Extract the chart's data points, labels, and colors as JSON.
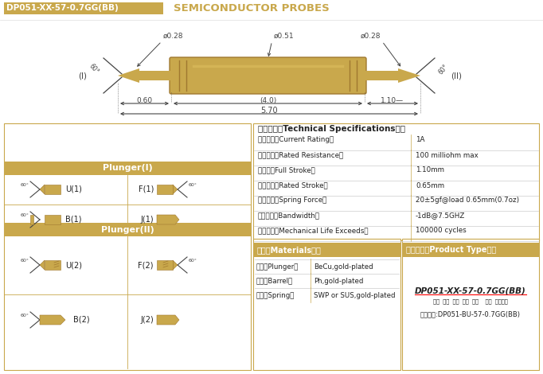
{
  "title_box_text": "DP051-XX-57-0.7GG(BB)",
  "title_subtitle": "SEMICONDUCTOR PROBES",
  "gold_color": "#C9A84C",
  "gold_dark": "#A07830",
  "gold_light": "#E0C060",
  "white": "#FFFFFF",
  "text_dark": "#222222",
  "dim_color": "#444444",
  "border_color": "#C9A84C",
  "specs": [
    [
      "额定电流（Current Rating）",
      "1A"
    ],
    [
      "额定电阰（Rated Resistance）",
      "100 milliohm max"
    ],
    [
      "满行程（Full Stroke）",
      "1.10mm"
    ],
    [
      "额定行程（Rated Stroke）",
      "0.65mm"
    ],
    [
      "额定弹力（Spring Force）",
      "20±5gf@load 0.65mm(0.7oz)"
    ],
    [
      "频率带宽（Bandwidth）",
      "-1dB@7.5GHZ"
    ],
    [
      "测试寿命（Mechanical Life Exceeds）",
      "100000 cycles"
    ]
  ],
  "spec_header": "技术要求（Technical Specifications）：",
  "materials_header": "材质（Materials）：",
  "materials": [
    [
      "针头（Plunger）",
      "BeCu,gold-plated"
    ],
    [
      "针管（Barrel）",
      "Ph,gold-plated"
    ],
    [
      "弹簧（Spring）",
      "SWP or SUS,gold-plated"
    ]
  ],
  "product_type_header": "成品型号（Product Type）：",
  "product_type_code": "DP051-XX-57-0.7GG(BB)",
  "product_type_labels": "系列  规格  头型  总长  弹力    镀金  针头材质",
  "product_type_example": "订购举例:DP051-BU-57-0.7GG(BB)",
  "plunger1_header": "Plunger(I)",
  "plunger2_header": "Plunger(II)"
}
